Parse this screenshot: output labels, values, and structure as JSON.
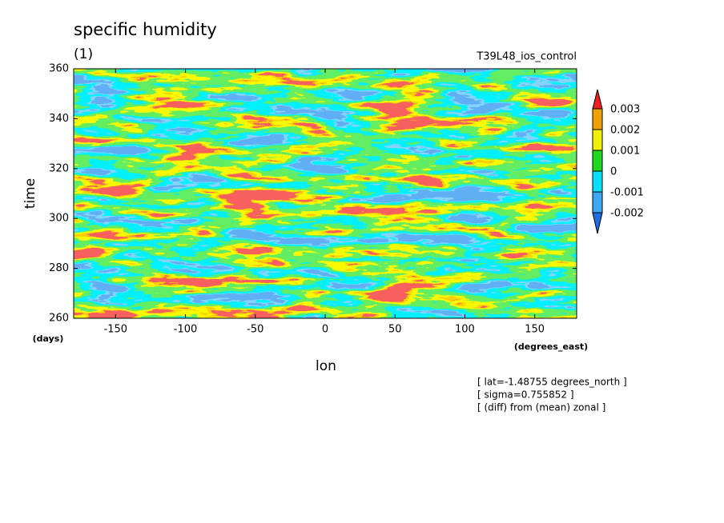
{
  "chart_data": {
    "type": "contour",
    "title": "specific humidity",
    "subtitle": "(1)",
    "run_label": "T39L48_ios_control",
    "x_label": "lon",
    "x_unit": "(degrees_east)",
    "y_label": "time",
    "y_unit": "(days)",
    "xlim": [
      -180,
      180
    ],
    "xticks": [
      -150,
      -100,
      -50,
      0,
      50,
      100,
      150
    ],
    "ylim": [
      260,
      360
    ],
    "yticks": [
      260,
      280,
      300,
      320,
      340,
      360
    ],
    "levels": [
      -0.002,
      -0.001,
      0,
      0.001,
      0.002,
      0.003
    ],
    "colors": [
      "#1e6ee6",
      "#3ca8f5",
      "#00e0ff",
      "#20d820",
      "#f0f000",
      "#f0a000",
      "#f01e1e"
    ],
    "annotations": [
      "[ lat=-1.48755 degrees_north ]",
      "[ sigma=0.755852 ]",
      "[ (diff) from (mean) zonal ]"
    ]
  }
}
